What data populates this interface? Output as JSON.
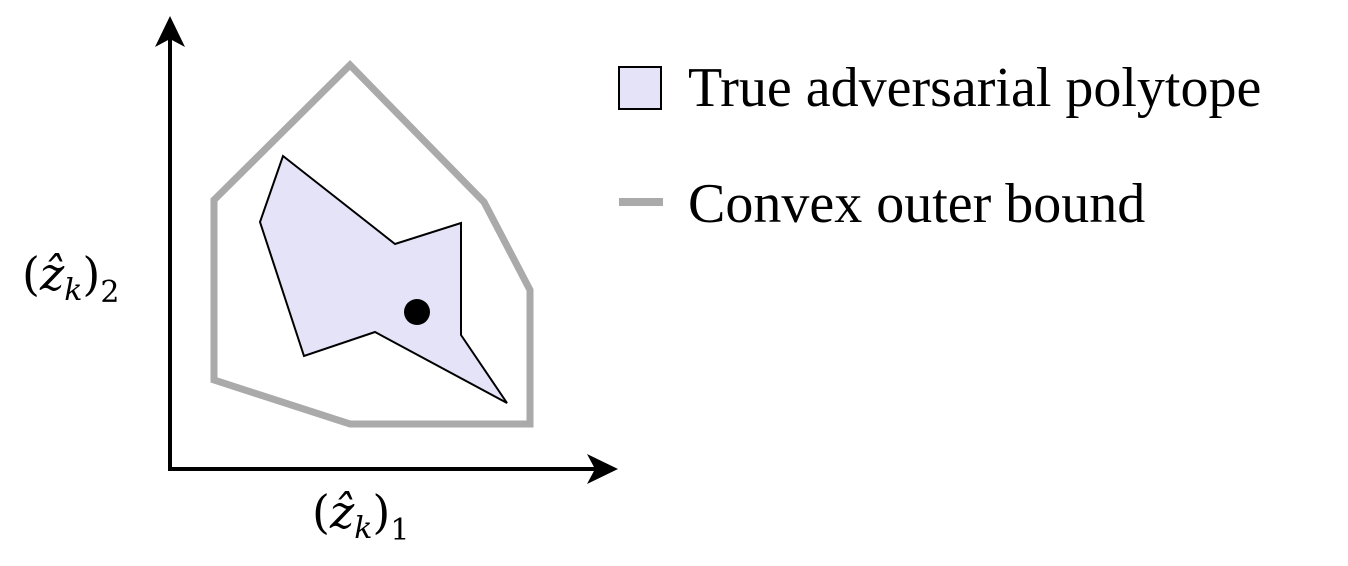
{
  "axes": {
    "x_label": {
      "base": "(",
      "var": "ẑ",
      "sub_k": "k",
      "close": ")",
      "index": "1"
    },
    "y_label": {
      "base": "(",
      "var": "ẑ",
      "sub_k": "k",
      "close": ")",
      "index": "2"
    }
  },
  "legend": {
    "items": [
      {
        "label": "True adversarial polytope",
        "kind": "filled-square"
      },
      {
        "label": "Convex outer bound",
        "kind": "line"
      }
    ]
  },
  "colors": {
    "axis": "#000000",
    "polytope_fill": "#e5e3f8",
    "polytope_stroke": "#000000",
    "outer_bound": "#aaaaaa",
    "point": "#000000"
  }
}
